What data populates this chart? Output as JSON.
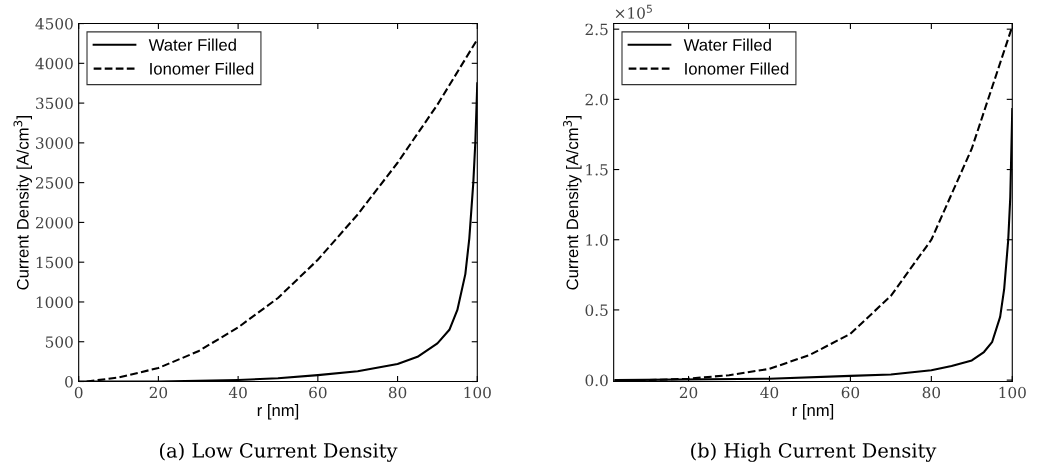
{
  "chart_data": [
    {
      "type": "line",
      "title": "(a) Low Current Density",
      "xlabel": "r [nm]",
      "ylabel": "Current Density [A/cm$^{3}$]",
      "xlim": [
        0,
        100
      ],
      "xticks": [
        0,
        20,
        40,
        60,
        80,
        100
      ],
      "ylim": [
        0,
        4500
      ],
      "yticks": [
        0,
        500,
        1000,
        1500,
        2000,
        2500,
        3000,
        3500,
        4000,
        4500
      ],
      "legend": "top left",
      "grid": false,
      "series": [
        {
          "name": "Water Filled",
          "color": "#000000",
          "line_style": "solid",
          "x": [
            0,
            20,
            40,
            50,
            60,
            70,
            80,
            85,
            90,
            93,
            95,
            97,
            98,
            99,
            99.5,
            100
          ],
          "values": [
            0,
            0,
            20,
            40,
            80,
            130,
            220,
            310,
            480,
            650,
            900,
            1350,
            1800,
            2500,
            3000,
            3750
          ]
        },
        {
          "name": "Ionomer Filled",
          "color": "#000000",
          "line_style": "dashed",
          "x": [
            2,
            10,
            20,
            30,
            40,
            50,
            60,
            70,
            80,
            90,
            100
          ],
          "values": [
            0,
            50,
            170,
            380,
            680,
            1050,
            1530,
            2100,
            2750,
            3480,
            4300
          ]
        }
      ]
    },
    {
      "type": "line",
      "title": "(b) High Current Density",
      "xlabel": "r [nm]",
      "ylabel": "Current Density [A/cm$^{3}$]",
      "annotations": [
        "×10$^{5}$"
      ],
      "xlim": [
        1.5,
        100
      ],
      "xticks": [
        20,
        40,
        60,
        80,
        100
      ],
      "ylim": [
        -0.01,
        2.54
      ],
      "yticks": [
        {
          "value": 0,
          "label": "0.0"
        },
        {
          "value": 0.5,
          "label": "0.5"
        },
        {
          "value": 1,
          "label": "1.0"
        },
        {
          "value": 1.5,
          "label": "1.5"
        },
        {
          "value": 2,
          "label": "2.0"
        },
        {
          "value": 2.5,
          "label": "2.5"
        }
      ],
      "legend": "top left",
      "grid": false,
      "series": [
        {
          "name": "Water Filled",
          "color": "#000000",
          "line_style": "solid",
          "x": [
            2,
            40,
            60,
            70,
            80,
            85,
            90,
            93,
            95,
            97,
            98,
            99,
            99.5,
            100
          ],
          "values": [
            0,
            0.01,
            0.03,
            0.04,
            0.07,
            0.1,
            0.14,
            0.2,
            0.27,
            0.45,
            0.65,
            1.0,
            1.3,
            1.93
          ]
        },
        {
          "name": "Ionomer Filled",
          "color": "#000000",
          "line_style": "dashed",
          "x": [
            2,
            10,
            20,
            30,
            40,
            50,
            60,
            70,
            80,
            90,
            100
          ],
          "values": [
            0,
            0,
            0.01,
            0.035,
            0.08,
            0.18,
            0.33,
            0.6,
            1.0,
            1.65,
            2.52
          ]
        }
      ]
    }
  ]
}
